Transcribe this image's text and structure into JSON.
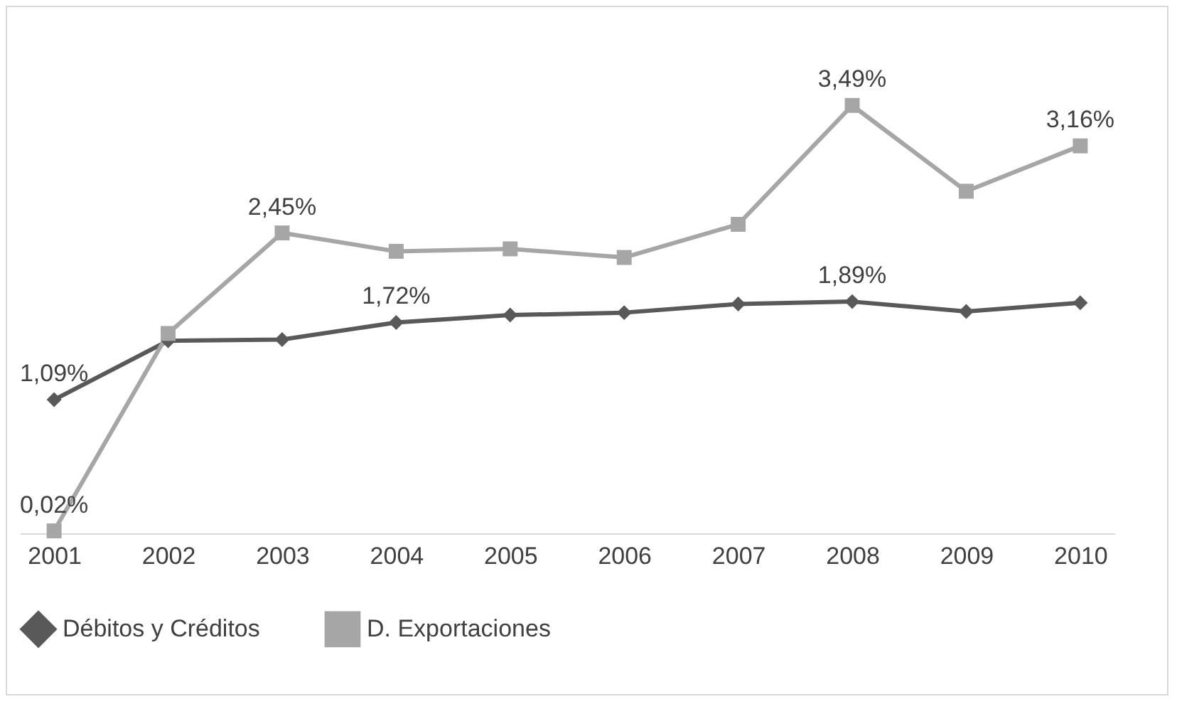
{
  "chart_data": {
    "type": "line",
    "categories": [
      "2001",
      "2002",
      "2003",
      "2004",
      "2005",
      "2006",
      "2007",
      "2008",
      "2009",
      "2010"
    ],
    "series": [
      {
        "name": "Débitos y Créditos",
        "color": "#595959",
        "marker": "diamond",
        "values": [
          1.09,
          1.57,
          1.58,
          1.72,
          1.78,
          1.8,
          1.87,
          1.89,
          1.81,
          1.88
        ],
        "value_labels": [
          "1,09%",
          null,
          null,
          "1,72%",
          null,
          null,
          null,
          "1,89%",
          null,
          null
        ]
      },
      {
        "name": "D. Exportaciones",
        "color": "#a6a6a6",
        "marker": "square",
        "values": [
          0.02,
          1.63,
          2.45,
          2.3,
          2.32,
          2.25,
          2.52,
          3.49,
          2.79,
          3.16
        ],
        "value_labels": [
          "0,02%",
          null,
          "2,45%",
          null,
          null,
          null,
          null,
          "3,49%",
          null,
          "3,16%"
        ]
      }
    ],
    "legend": "bottom",
    "grid": false
  }
}
